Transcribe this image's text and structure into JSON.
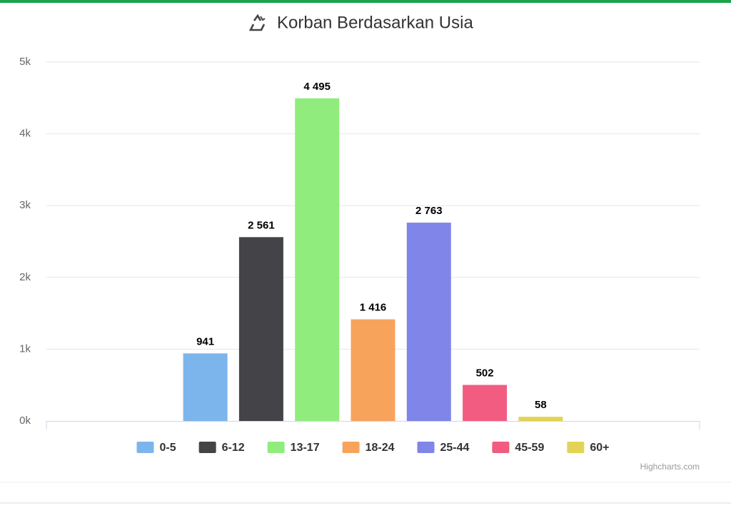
{
  "chart_data": {
    "type": "bar",
    "title": "Korban Berdasarkan Usia",
    "series": [
      {
        "name": "0-5",
        "color": "#7cb5ec",
        "values": [
          941
        ]
      },
      {
        "name": "6-12",
        "color": "#434348",
        "values": [
          2561
        ],
        "value_labels": [
          "2 561"
        ]
      },
      {
        "name": "13-17",
        "color": "#90ed7d",
        "values": [
          4495
        ],
        "value_labels": [
          "4 495"
        ]
      },
      {
        "name": "18-24",
        "color": "#f7a35c",
        "values": [
          1416
        ],
        "value_labels": [
          "1 416"
        ]
      },
      {
        "name": "25-44",
        "color": "#8085e9",
        "values": [
          2763
        ],
        "value_labels": [
          "2 763"
        ]
      },
      {
        "name": "45-59",
        "color": "#f15c80",
        "values": [
          502
        ]
      },
      {
        "name": "60+",
        "color": "#e4d354",
        "values": [
          58
        ]
      }
    ],
    "ylim": [
      0,
      5000
    ],
    "yticks": [
      {
        "value": 0,
        "label": "0k"
      },
      {
        "value": 1000,
        "label": "1k"
      },
      {
        "value": 2000,
        "label": "2k"
      },
      {
        "value": 3000,
        "label": "3k"
      },
      {
        "value": 4000,
        "label": "4k"
      },
      {
        "value": 5000,
        "label": "5k"
      }
    ],
    "grid": true,
    "credits": "Highcharts.com"
  }
}
